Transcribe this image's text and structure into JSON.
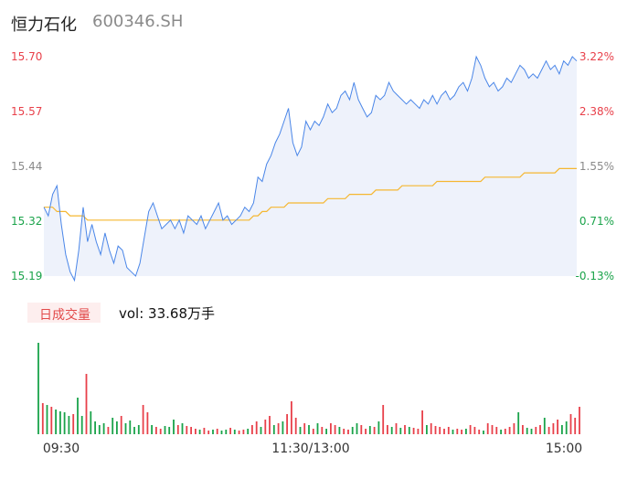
{
  "header": {
    "name": "恒力石化",
    "code": "600346.SH"
  },
  "volume": {
    "tab_label": "日成交量",
    "summary": "vol: 33.68万手"
  },
  "colors": {
    "price": "#4a86e8",
    "avg": "#f5b731",
    "up": "#e8404a",
    "down": "#1aa34a",
    "flat": "#8a8a8a",
    "fill": "#eef2fb"
  },
  "chart_data": {
    "type": "line",
    "title": "",
    "ylim": [
      15.19,
      15.7
    ],
    "y_ticks_left": [
      "15.70",
      "15.57",
      "15.44",
      "15.32",
      "15.19"
    ],
    "y_ticks_right": [
      "3.22%",
      "2.38%",
      "1.55%",
      "0.71%",
      "-0.13%"
    ],
    "x_ticks": [
      "09:30",
      "11:30/13:00",
      "15:00"
    ],
    "series": [
      {
        "values": [
          15.35,
          15.33,
          15.38,
          15.4,
          15.31,
          15.24,
          15.2,
          15.18,
          15.25,
          15.35,
          15.27,
          15.31,
          15.27,
          15.24,
          15.29,
          15.25,
          15.22,
          15.26,
          15.25,
          15.21,
          15.2,
          15.19,
          15.22,
          15.28,
          15.34,
          15.36,
          15.33,
          15.3,
          15.31,
          15.32,
          15.3,
          15.32,
          15.29,
          15.33,
          15.32,
          15.31,
          15.33,
          15.3,
          15.32,
          15.34,
          15.36,
          15.32,
          15.33,
          15.31,
          15.32,
          15.33,
          15.35,
          15.34,
          15.36,
          15.42,
          15.41,
          15.45,
          15.47,
          15.5,
          15.52,
          15.55,
          15.58,
          15.5,
          15.47,
          15.49,
          15.55,
          15.53,
          15.55,
          15.54,
          15.56,
          15.59,
          15.57,
          15.58,
          15.61,
          15.62,
          15.6,
          15.64,
          15.6,
          15.58,
          15.56,
          15.57,
          15.61,
          15.6,
          15.61,
          15.64,
          15.62,
          15.61,
          15.6,
          15.59,
          15.6,
          15.59,
          15.58,
          15.6,
          15.59,
          15.61,
          15.59,
          15.61,
          15.62,
          15.6,
          15.61,
          15.63,
          15.64,
          15.62,
          15.65,
          15.7,
          15.68,
          15.65,
          15.63,
          15.64,
          15.62,
          15.63,
          15.65,
          15.64,
          15.66,
          15.68,
          15.67,
          15.65,
          15.66,
          15.65,
          15.67,
          15.69,
          15.67,
          15.68,
          15.66,
          15.69,
          15.68,
          15.7,
          15.69
        ],
        "color": "#4a86e8"
      },
      {
        "values": [
          15.35,
          15.35,
          15.35,
          15.34,
          15.34,
          15.34,
          15.33,
          15.33,
          15.33,
          15.33,
          15.32,
          15.32,
          15.32,
          15.32,
          15.32,
          15.32,
          15.32,
          15.32,
          15.32,
          15.32,
          15.32,
          15.32,
          15.32,
          15.32,
          15.32,
          15.32,
          15.32,
          15.32,
          15.32,
          15.32,
          15.32,
          15.32,
          15.32,
          15.32,
          15.32,
          15.32,
          15.32,
          15.32,
          15.32,
          15.32,
          15.32,
          15.32,
          15.32,
          15.32,
          15.32,
          15.32,
          15.32,
          15.32,
          15.33,
          15.33,
          15.34,
          15.34,
          15.35,
          15.35,
          15.35,
          15.35,
          15.36,
          15.36,
          15.36,
          15.36,
          15.36,
          15.36,
          15.36,
          15.36,
          15.36,
          15.37,
          15.37,
          15.37,
          15.37,
          15.37,
          15.38,
          15.38,
          15.38,
          15.38,
          15.38,
          15.38,
          15.39,
          15.39,
          15.39,
          15.39,
          15.39,
          15.39,
          15.4,
          15.4,
          15.4,
          15.4,
          15.4,
          15.4,
          15.4,
          15.4,
          15.41,
          15.41,
          15.41,
          15.41,
          15.41,
          15.41,
          15.41,
          15.41,
          15.41,
          15.41,
          15.41,
          15.42,
          15.42,
          15.42,
          15.42,
          15.42,
          15.42,
          15.42,
          15.42,
          15.42,
          15.43,
          15.43,
          15.43,
          15.43,
          15.43,
          15.43,
          15.43,
          15.43,
          15.44,
          15.44,
          15.44,
          15.44,
          15.44
        ],
        "color": "#f5b731"
      }
    ],
    "volume": [
      {
        "v": 100,
        "d": "down"
      },
      {
        "v": 34,
        "d": "up"
      },
      {
        "v": 32,
        "d": "down"
      },
      {
        "v": 30,
        "d": "up"
      },
      {
        "v": 27,
        "d": "down"
      },
      {
        "v": 25,
        "d": "down"
      },
      {
        "v": 24,
        "d": "down"
      },
      {
        "v": 20,
        "d": "down"
      },
      {
        "v": 22,
        "d": "up"
      },
      {
        "v": 40,
        "d": "down"
      },
      {
        "v": 20,
        "d": "down"
      },
      {
        "v": 66,
        "d": "up"
      },
      {
        "v": 25,
        "d": "down"
      },
      {
        "v": 14,
        "d": "down"
      },
      {
        "v": 10,
        "d": "down"
      },
      {
        "v": 12,
        "d": "down"
      },
      {
        "v": 8,
        "d": "up"
      },
      {
        "v": 18,
        "d": "down"
      },
      {
        "v": 14,
        "d": "down"
      },
      {
        "v": 20,
        "d": "up"
      },
      {
        "v": 12,
        "d": "down"
      },
      {
        "v": 15,
        "d": "down"
      },
      {
        "v": 8,
        "d": "down"
      },
      {
        "v": 10,
        "d": "down"
      },
      {
        "v": 32,
        "d": "up"
      },
      {
        "v": 24,
        "d": "up"
      },
      {
        "v": 10,
        "d": "down"
      },
      {
        "v": 8,
        "d": "up"
      },
      {
        "v": 6,
        "d": "up"
      },
      {
        "v": 9,
        "d": "down"
      },
      {
        "v": 8,
        "d": "down"
      },
      {
        "v": 16,
        "d": "down"
      },
      {
        "v": 10,
        "d": "up"
      },
      {
        "v": 12,
        "d": "down"
      },
      {
        "v": 9,
        "d": "up"
      },
      {
        "v": 8,
        "d": "up"
      },
      {
        "v": 6,
        "d": "up"
      },
      {
        "v": 5,
        "d": "down"
      },
      {
        "v": 7,
        "d": "up"
      },
      {
        "v": 4,
        "d": "up"
      },
      {
        "v": 5,
        "d": "down"
      },
      {
        "v": 6,
        "d": "up"
      },
      {
        "v": 4,
        "d": "down"
      },
      {
        "v": 5,
        "d": "down"
      },
      {
        "v": 7,
        "d": "up"
      },
      {
        "v": 5,
        "d": "down"
      },
      {
        "v": 4,
        "d": "up"
      },
      {
        "v": 5,
        "d": "up"
      },
      {
        "v": 6,
        "d": "down"
      },
      {
        "v": 10,
        "d": "up"
      },
      {
        "v": 14,
        "d": "up"
      },
      {
        "v": 8,
        "d": "down"
      },
      {
        "v": 16,
        "d": "up"
      },
      {
        "v": 20,
        "d": "up"
      },
      {
        "v": 10,
        "d": "down"
      },
      {
        "v": 12,
        "d": "up"
      },
      {
        "v": 14,
        "d": "down"
      },
      {
        "v": 22,
        "d": "up"
      },
      {
        "v": 36,
        "d": "up"
      },
      {
        "v": 18,
        "d": "up"
      },
      {
        "v": 8,
        "d": "down"
      },
      {
        "v": 12,
        "d": "up"
      },
      {
        "v": 10,
        "d": "down"
      },
      {
        "v": 6,
        "d": "up"
      },
      {
        "v": 12,
        "d": "down"
      },
      {
        "v": 8,
        "d": "up"
      },
      {
        "v": 6,
        "d": "down"
      },
      {
        "v": 12,
        "d": "up"
      },
      {
        "v": 10,
        "d": "up"
      },
      {
        "v": 8,
        "d": "down"
      },
      {
        "v": 6,
        "d": "up"
      },
      {
        "v": 5,
        "d": "up"
      },
      {
        "v": 8,
        "d": "down"
      },
      {
        "v": 12,
        "d": "down"
      },
      {
        "v": 10,
        "d": "up"
      },
      {
        "v": 6,
        "d": "up"
      },
      {
        "v": 9,
        "d": "down"
      },
      {
        "v": 8,
        "d": "up"
      },
      {
        "v": 14,
        "d": "down"
      },
      {
        "v": 32,
        "d": "up"
      },
      {
        "v": 10,
        "d": "up"
      },
      {
        "v": 8,
        "d": "down"
      },
      {
        "v": 12,
        "d": "up"
      },
      {
        "v": 7,
        "d": "down"
      },
      {
        "v": 10,
        "d": "up"
      },
      {
        "v": 8,
        "d": "down"
      },
      {
        "v": 7,
        "d": "up"
      },
      {
        "v": 6,
        "d": "up"
      },
      {
        "v": 26,
        "d": "up"
      },
      {
        "v": 10,
        "d": "down"
      },
      {
        "v": 12,
        "d": "up"
      },
      {
        "v": 9,
        "d": "up"
      },
      {
        "v": 8,
        "d": "up"
      },
      {
        "v": 6,
        "d": "up"
      },
      {
        "v": 8,
        "d": "up"
      },
      {
        "v": 5,
        "d": "down"
      },
      {
        "v": 6,
        "d": "up"
      },
      {
        "v": 5,
        "d": "up"
      },
      {
        "v": 6,
        "d": "down"
      },
      {
        "v": 10,
        "d": "up"
      },
      {
        "v": 8,
        "d": "up"
      },
      {
        "v": 5,
        "d": "up"
      },
      {
        "v": 4,
        "d": "down"
      },
      {
        "v": 12,
        "d": "up"
      },
      {
        "v": 10,
        "d": "up"
      },
      {
        "v": 8,
        "d": "up"
      },
      {
        "v": 5,
        "d": "down"
      },
      {
        "v": 6,
        "d": "up"
      },
      {
        "v": 8,
        "d": "up"
      },
      {
        "v": 12,
        "d": "up"
      },
      {
        "v": 24,
        "d": "down"
      },
      {
        "v": 10,
        "d": "up"
      },
      {
        "v": 7,
        "d": "down"
      },
      {
        "v": 6,
        "d": "down"
      },
      {
        "v": 8,
        "d": "up"
      },
      {
        "v": 10,
        "d": "up"
      },
      {
        "v": 18,
        "d": "down"
      },
      {
        "v": 8,
        "d": "up"
      },
      {
        "v": 12,
        "d": "up"
      },
      {
        "v": 16,
        "d": "up"
      },
      {
        "v": 10,
        "d": "down"
      },
      {
        "v": 14,
        "d": "down"
      },
      {
        "v": 22,
        "d": "up"
      },
      {
        "v": 18,
        "d": "up"
      },
      {
        "v": 30,
        "d": "up"
      }
    ]
  }
}
